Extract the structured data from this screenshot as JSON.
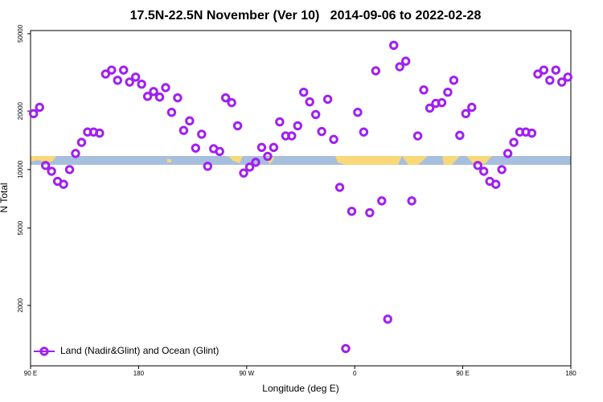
{
  "chart_data": {
    "type": "scatter",
    "title": "17.5N-22.5N November (Ver 10)   2014-09-06 to 2022-02-28",
    "x_label": "Longitude (deg E)",
    "y_label": "N Total",
    "log_y": true,
    "legend": "lower left",
    "marker": "ring",
    "xlim": [
      90,
      540
    ],
    "xticks": [
      {
        "value": 90,
        "label": "90 E"
      },
      180,
      {
        "value": 270,
        "label": "90 W"
      },
      {
        "value": 360,
        "label": "0"
      },
      {
        "value": 450,
        "label": "90 E"
      },
      {
        "value": 540,
        "label": "180"
      }
    ],
    "ylim": [
      978,
      51900
    ],
    "yticks": [
      2000,
      5000,
      10000,
      20000,
      50000
    ],
    "series": [
      {
        "name": "Land (Nadir&Glint) and Ocean (Glint)",
        "color": "#a020f0",
        "x": [
          92.5,
          97.5,
          102.5,
          107.5,
          112.5,
          117.5,
          122.5,
          127.5,
          132.5,
          137.5,
          142.5,
          147.5,
          152.5,
          157.5,
          162.5,
          167.5,
          172.5,
          177.5,
          182.5,
          187.5,
          192.5,
          197.5,
          202.5,
          207.5,
          212.5,
          217.5,
          222.5,
          227.5,
          232.5,
          237.5,
          242.5,
          247.5,
          252.5,
          257.5,
          262.5,
          267.5,
          272.5,
          277.5,
          282.5,
          287.5,
          292.5,
          297.5,
          302.5,
          307.5,
          312.5,
          317.5,
          322.5,
          327.5,
          332.5,
          337.5,
          342.5,
          347.5,
          352.5,
          357.5,
          362.5,
          367.5,
          372.5,
          377.5,
          382.5,
          387.5,
          392.5,
          397.5,
          402.5,
          407.5,
          412.5,
          417.5,
          422.5,
          427.5,
          432.5,
          437.5,
          442.5,
          447.5,
          452.5,
          457.5,
          462.5,
          467.5,
          472.5,
          477.5,
          482.5,
          487.5,
          492.5,
          497.5,
          502.5,
          507.5,
          512.5,
          517.5,
          522.5,
          527.5,
          532.5,
          537.5
        ],
        "values": [
          19400,
          20900,
          10500,
          9800,
          8700,
          8400,
          10000,
          12100,
          13800,
          15600,
          15600,
          15400,
          31000,
          32500,
          28800,
          32500,
          28200,
          29900,
          27500,
          23800,
          25200,
          23600,
          26400,
          19700,
          23400,
          15900,
          17800,
          12900,
          15200,
          10400,
          12800,
          12400,
          23400,
          22100,
          16800,
          9600,
          10300,
          10900,
          13000,
          11700,
          13000,
          17600,
          14900,
          14900,
          16800,
          25000,
          22300,
          19200,
          15700,
          23000,
          14300,
          8100,
          1200,
          6100,
          19700,
          15600,
          6000,
          32200,
          6900,
          1700,
          43600,
          33800,
          36100,
          6900,
          14900,
          25700,
          20700,
          21900,
          22100,
          25000,
          28800,
          15000,
          19400,
          20900,
          10500,
          9800,
          8700,
          8400,
          10000,
          12100,
          13800,
          15600,
          15600,
          15400,
          31000,
          32500,
          28800,
          32500,
          28200,
          29900
        ]
      }
    ]
  }
}
